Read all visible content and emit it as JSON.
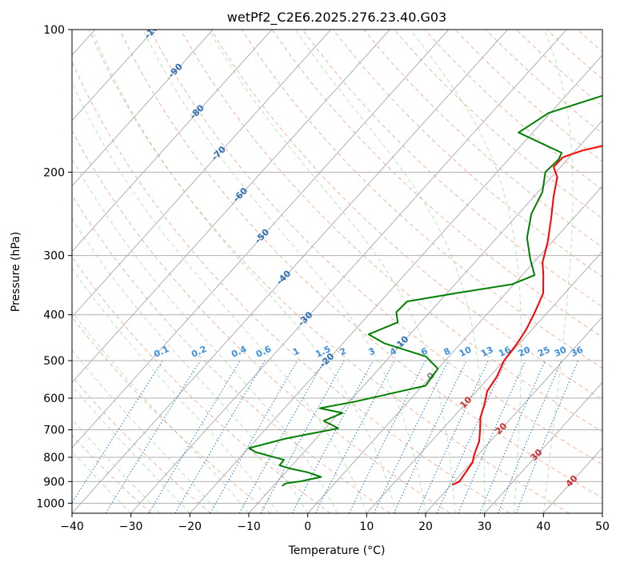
{
  "chart_data": {
    "type": "line",
    "subtype": "skew-t log-p diagram",
    "title": "wetPf2_C2E6.2025.276.23.40.G03",
    "xlabel": "Temperature (°C)",
    "ylabel": "Pressure (hPa)",
    "xlim": [
      -40,
      50
    ],
    "ylim": [
      1050,
      100
    ],
    "y_scale": "log",
    "grid": true,
    "x_ticks": [
      "−40",
      "−30",
      "−20",
      "−10",
      "0",
      "10",
      "20",
      "30",
      "40",
      "50"
    ],
    "y_ticks": [
      "100",
      "200",
      "300",
      "400",
      "500",
      "600",
      "700",
      "800",
      "900",
      "1000"
    ],
    "isotherm_labels": [
      "-100",
      "-90",
      "-80",
      "-70",
      "-60",
      "-50",
      "-40",
      "-30",
      "-20",
      "-10",
      "0",
      "10",
      "20",
      "30",
      "40"
    ],
    "mixing_ratio_labels": [
      "0.1",
      "0.2",
      "0.4",
      "0.6",
      "1",
      "1.5",
      "2",
      "3",
      "4",
      "6",
      "8",
      "10",
      "13",
      "16",
      "20",
      "25",
      "30",
      "36"
    ],
    "series": [
      {
        "color": "#ff0000",
        "points": [
          [
            20.2,
            915
          ],
          [
            20.9,
            900
          ],
          [
            20.2,
            820
          ],
          [
            19.3,
            790
          ],
          [
            18.1,
            740
          ],
          [
            16.5,
            700
          ],
          [
            14.7,
            660
          ],
          [
            13.4,
            620
          ],
          [
            11.8,
            580
          ],
          [
            11.2,
            540
          ],
          [
            10.0,
            500
          ],
          [
            9.6,
            460
          ],
          [
            9.0,
            430
          ],
          [
            8.0,
            400
          ],
          [
            7.2,
            380
          ],
          [
            6.3,
            360
          ],
          [
            3.6,
            330
          ],
          [
            1.5,
            310
          ],
          [
            -0.8,
            280
          ],
          [
            -3.8,
            250
          ],
          [
            -6.7,
            225
          ],
          [
            -9.0,
            205
          ],
          [
            -11.2,
            195
          ],
          [
            -11.1,
            186
          ],
          [
            -8.8,
            180
          ],
          [
            -1.8,
            170
          ],
          [
            5.9,
            162
          ],
          [
            10.1,
            150
          ],
          [
            10.3,
            140
          ],
          [
            12.2,
            128
          ],
          [
            16.7,
            118
          ],
          [
            22.5,
            110
          ],
          [
            27.0,
            102
          ]
        ]
      },
      {
        "color": "#008000",
        "points": [
          [
            -8.5,
            920
          ],
          [
            -8.3,
            908
          ],
          [
            -6.2,
            900
          ],
          [
            -3.3,
            880
          ],
          [
            -6.4,
            860
          ],
          [
            -9.8,
            845
          ],
          [
            -12.1,
            832
          ],
          [
            -12.2,
            810
          ],
          [
            -18.2,
            780
          ],
          [
            -19.9,
            765
          ],
          [
            -15.1,
            730
          ],
          [
            -7.8,
            695
          ],
          [
            -11.4,
            670
          ],
          [
            -9.4,
            645
          ],
          [
            -14.0,
            630
          ],
          [
            -9.0,
            610
          ],
          [
            -2.8,
            580
          ],
          [
            0.5,
            565
          ],
          [
            0.0,
            520
          ],
          [
            -3.9,
            490
          ],
          [
            -12.9,
            460
          ],
          [
            -17.0,
            440
          ],
          [
            -13.9,
            415
          ],
          [
            -15.7,
            395
          ],
          [
            -15.5,
            375
          ],
          [
            -8.4,
            360
          ],
          [
            -0.3,
            345
          ],
          [
            2.1,
            330
          ],
          [
            -1.1,
            305
          ],
          [
            -4.9,
            275
          ],
          [
            -7.8,
            245
          ],
          [
            -9.3,
            220
          ],
          [
            -11.8,
            200
          ],
          [
            -11.5,
            188
          ],
          [
            -12.0,
            182
          ],
          [
            -22.4,
            165
          ],
          [
            -20.3,
            150
          ],
          [
            -9.2,
            130
          ],
          [
            -6.2,
            110
          ],
          [
            -0.3,
            100
          ]
        ]
      }
    ]
  }
}
